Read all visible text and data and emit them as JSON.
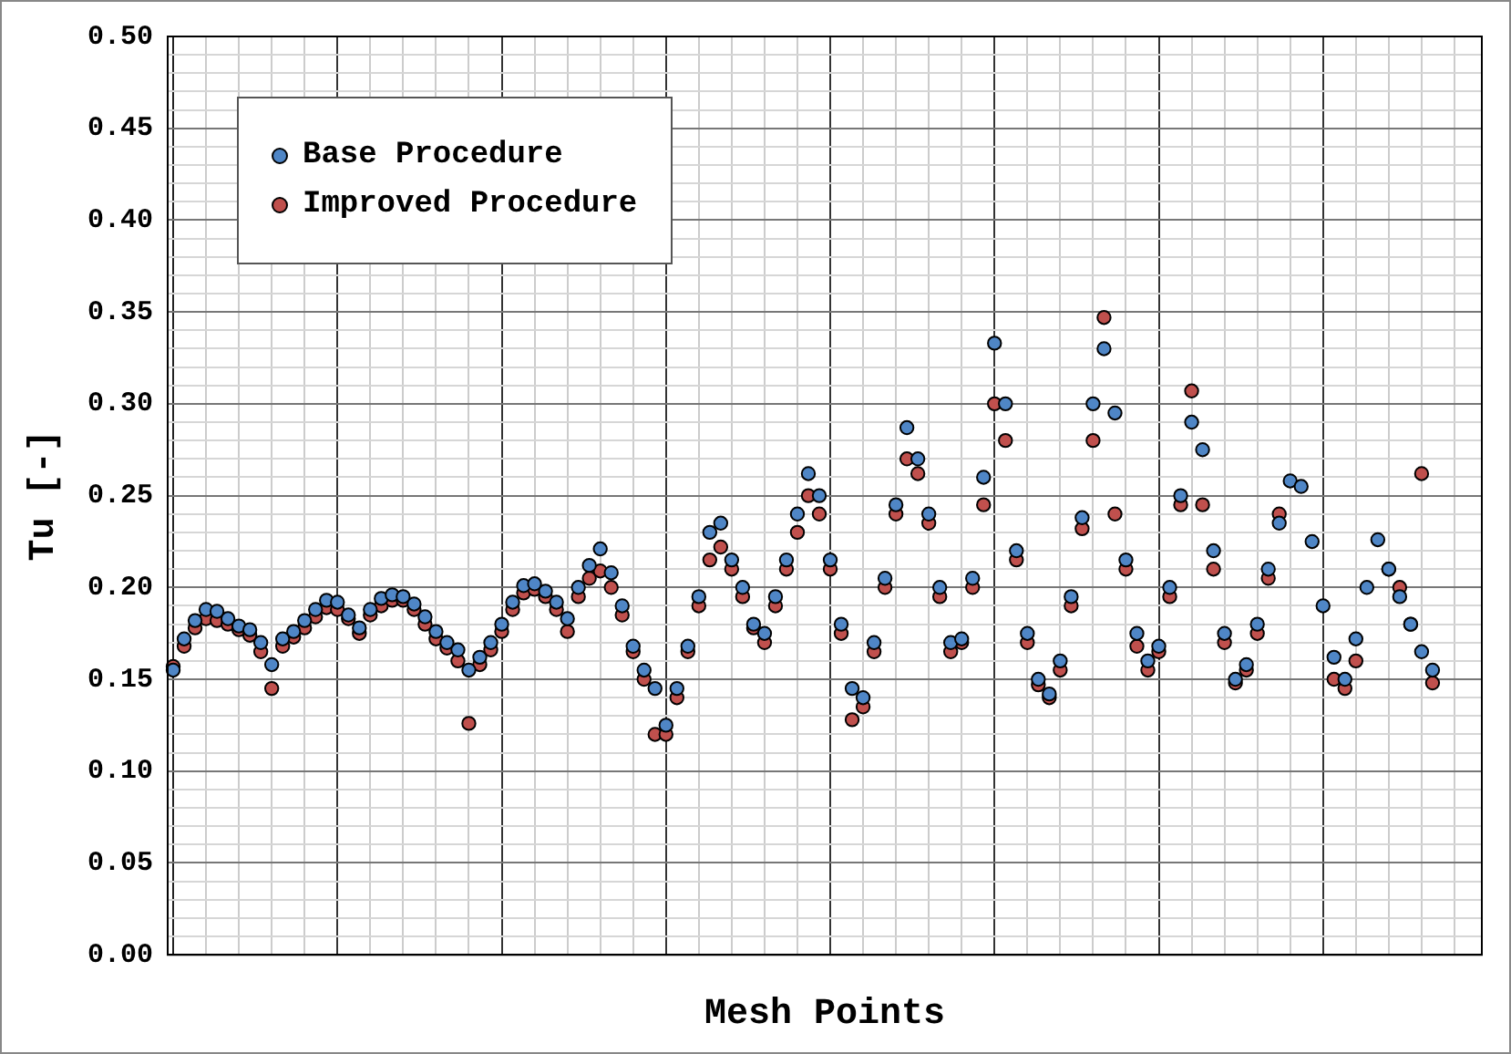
{
  "chart_data": {
    "type": "scatter",
    "xlabel": "Mesh Points",
    "ylabel": "Tu [-]",
    "categories": [
      null,
      null,
      null,
      null,
      null,
      null,
      null,
      null,
      null,
      null,
      null,
      null,
      null,
      null,
      null,
      null,
      null,
      null,
      null,
      null,
      null,
      null,
      null,
      null,
      null,
      null,
      null,
      null,
      null,
      null,
      null,
      null,
      null,
      null,
      null,
      null,
      null,
      null,
      null,
      null,
      null,
      null,
      null,
      null,
      null,
      null,
      null,
      null,
      null,
      null,
      null,
      null,
      null,
      null,
      null,
      null,
      null,
      null,
      null,
      null,
      null,
      null,
      null,
      null,
      null,
      null,
      null,
      null,
      null,
      null,
      null,
      null,
      null,
      null,
      null,
      null,
      null,
      null,
      null,
      null,
      null,
      null,
      null,
      null,
      null,
      null,
      null,
      null,
      null,
      null,
      null,
      null,
      null,
      null,
      null,
      null,
      null,
      null,
      null,
      null,
      null,
      null,
      null,
      null,
      null,
      null,
      null,
      null,
      null,
      null,
      null,
      null,
      null,
      null,
      null,
      null,
      null,
      null,
      null,
      null
    ],
    "series": [
      {
        "name": "Base Procedure",
        "color": "#4f86c6",
        "values": [
          0.155,
          0.172,
          0.182,
          0.188,
          0.187,
          0.183,
          0.179,
          0.177,
          0.17,
          0.158,
          0.172,
          0.176,
          0.182,
          0.188,
          0.193,
          0.192,
          0.185,
          0.178,
          0.188,
          0.194,
          0.196,
          0.195,
          0.191,
          0.184,
          0.176,
          0.17,
          0.166,
          0.155,
          0.162,
          0.17,
          0.18,
          0.192,
          0.201,
          0.202,
          0.198,
          0.192,
          0.183,
          0.2,
          0.212,
          0.221,
          0.208,
          0.19,
          0.168,
          0.155,
          0.145,
          0.125,
          0.145,
          0.168,
          0.195,
          0.23,
          0.235,
          0.215,
          0.2,
          0.18,
          0.175,
          0.195,
          0.215,
          0.24,
          0.262,
          0.25,
          0.215,
          0.18,
          0.145,
          0.14,
          0.17,
          0.205,
          0.245,
          0.287,
          0.27,
          0.24,
          0.2,
          0.17,
          0.172,
          0.205,
          0.26,
          0.333,
          0.3,
          0.22,
          0.175,
          0.15,
          0.142,
          0.16,
          0.195,
          0.238,
          0.3,
          0.33,
          0.295,
          0.215,
          0.175,
          0.16,
          0.168,
          0.2,
          0.25,
          0.29,
          0.275,
          0.22,
          0.175,
          0.15,
          0.158,
          0.18,
          0.21,
          0.235,
          0.258,
          0.255,
          0.225,
          0.19,
          0.162,
          0.15,
          0.172,
          0.2,
          0.226,
          0.21,
          0.195,
          0.18,
          0.165,
          0.155,
          null,
          null,
          null,
          null
        ]
      },
      {
        "name": "Improved Procedure",
        "color": "#c0504d",
        "values": [
          0.157,
          0.168,
          0.178,
          0.183,
          0.182,
          0.18,
          0.177,
          0.174,
          0.165,
          0.145,
          0.168,
          0.173,
          0.178,
          0.184,
          0.189,
          0.188,
          0.183,
          0.175,
          0.185,
          0.19,
          0.193,
          0.193,
          0.188,
          0.18,
          0.172,
          0.167,
          0.16,
          0.126,
          0.158,
          0.166,
          0.176,
          0.188,
          0.197,
          0.199,
          0.195,
          0.188,
          0.176,
          0.195,
          0.205,
          0.209,
          0.2,
          0.185,
          0.165,
          0.15,
          0.12,
          0.12,
          0.14,
          0.165,
          0.19,
          0.215,
          0.222,
          0.21,
          0.195,
          0.178,
          0.17,
          0.19,
          0.21,
          0.23,
          0.25,
          0.24,
          0.21,
          0.175,
          0.128,
          0.135,
          0.165,
          0.2,
          0.24,
          0.27,
          0.262,
          0.235,
          0.195,
          0.165,
          0.17,
          0.2,
          0.245,
          0.3,
          0.28,
          0.215,
          0.17,
          0.147,
          0.14,
          0.155,
          0.19,
          0.232,
          0.28,
          0.347,
          0.24,
          0.21,
          0.168,
          0.155,
          0.165,
          0.195,
          0.245,
          0.307,
          0.245,
          0.21,
          0.17,
          0.148,
          0.155,
          0.175,
          0.205,
          0.24,
          null,
          null,
          null,
          null,
          0.15,
          0.145,
          0.16,
          null,
          null,
          0.21,
          0.2,
          0.18,
          0.262,
          0.148,
          null,
          null,
          null,
          null
        ]
      }
    ],
    "ylim": [
      0,
      0.5
    ],
    "yticks": [
      {
        "value": 0,
        "label": "0.00"
      },
      {
        "value": 0.01,
        "label": null
      },
      {
        "value": 0.02,
        "label": null
      },
      {
        "value": 0.03,
        "label": null
      },
      {
        "value": 0.04,
        "label": null
      },
      {
        "value": 0.05,
        "label": "0.05"
      },
      {
        "value": 0.06,
        "label": null
      },
      {
        "value": 0.07,
        "label": null
      },
      {
        "value": 0.08,
        "label": null
      },
      {
        "value": 0.09,
        "label": null
      },
      {
        "value": 0.1,
        "label": "0.10"
      },
      {
        "value": 0.11,
        "label": null
      },
      {
        "value": 0.12,
        "label": null
      },
      {
        "value": 0.13,
        "label": null
      },
      {
        "value": 0.14,
        "label": null
      },
      {
        "value": 0.15,
        "label": "0.15"
      },
      {
        "value": 0.16,
        "label": null
      },
      {
        "value": 0.17,
        "label": null
      },
      {
        "value": 0.18,
        "label": null
      },
      {
        "value": 0.19,
        "label": null
      },
      {
        "value": 0.2,
        "label": "0.20"
      },
      {
        "value": 0.21,
        "label": null
      },
      {
        "value": 0.22,
        "label": null
      },
      {
        "value": 0.23,
        "label": null
      },
      {
        "value": 0.24,
        "label": null
      },
      {
        "value": 0.25,
        "label": "0.25"
      },
      {
        "value": 0.26,
        "label": null
      },
      {
        "value": 0.27,
        "label": null
      },
      {
        "value": 0.28,
        "label": null
      },
      {
        "value": 0.29,
        "label": null
      },
      {
        "value": 0.3,
        "label": "0.30"
      },
      {
        "value": 0.31,
        "label": null
      },
      {
        "value": 0.32,
        "label": null
      },
      {
        "value": 0.33,
        "label": null
      },
      {
        "value": 0.34,
        "label": null
      },
      {
        "value": 0.35,
        "label": "0.35"
      },
      {
        "value": 0.36,
        "label": null
      },
      {
        "value": 0.37,
        "label": null
      },
      {
        "value": 0.38,
        "label": null
      },
      {
        "value": 0.39,
        "label": null
      },
      {
        "value": 0.4,
        "label": "0.40"
      },
      {
        "value": 0.41,
        "label": null
      },
      {
        "value": 0.42,
        "label": null
      },
      {
        "value": 0.43,
        "label": null
      },
      {
        "value": 0.44,
        "label": null
      },
      {
        "value": 0.45,
        "label": "0.45"
      },
      {
        "value": 0.46,
        "label": null
      },
      {
        "value": 0.47,
        "label": null
      },
      {
        "value": 0.48,
        "label": null
      },
      {
        "value": 0.49,
        "label": null
      },
      {
        "value": 0.5,
        "label": "0.50"
      }
    ],
    "grid": true,
    "legend": "top left",
    "marker": "circle"
  }
}
